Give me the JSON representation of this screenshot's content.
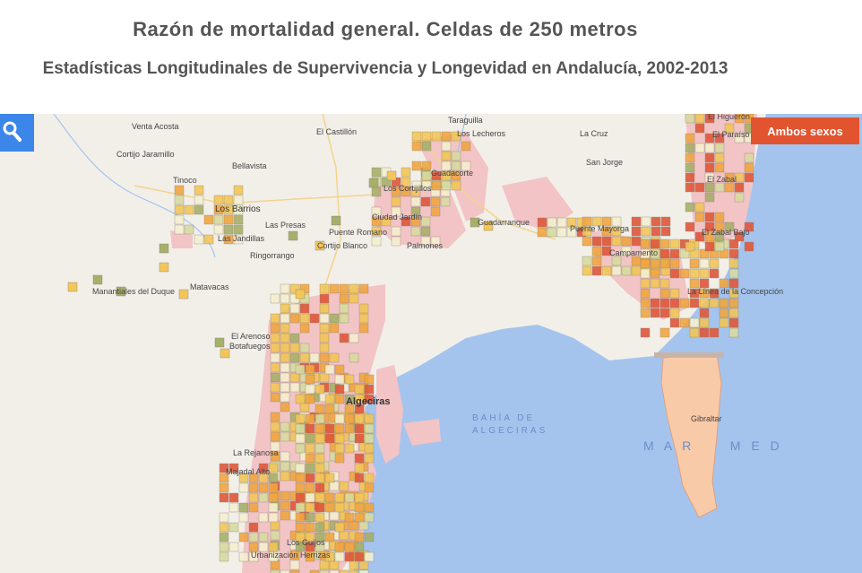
{
  "header": {
    "title": "Razón de mortalidad general. Celdas de 250 metros",
    "subtitle": "Estadísticas Longitudinales de Supervivencia y Longevidad en Andalucía, 2002-2013"
  },
  "controls": {
    "search_icon": "search-icon",
    "sex_filter_label": "Ambos sexos"
  },
  "colors": {
    "sea": "#a4c4ee",
    "land": "#f2efe9",
    "urban": "#f2c4c6",
    "gibraltar": "#f9caa8",
    "cell_low": "#a7b06a",
    "cell_midlow": "#d8dba0",
    "cell_mid": "#f5f0d0",
    "cell_midhigh": "#f2c659",
    "cell_high": "#f0a642",
    "cell_very_high": "#e0573a",
    "button": "#e2542f"
  },
  "labels": {
    "venta_acosta": "Venta Acosta",
    "cortijo_jaramillo": "Cortijo Jaramillo",
    "bellavista": "Bellavista",
    "tinoco": "Tinoco",
    "los_barrios": "Los Barrios",
    "las_presas": "Las Presas",
    "las_jandillas": "Las Jandillas",
    "ringorrango": "Ringorrango",
    "manantiales": "Manantiales del Duque",
    "matavacas": "Matavacas",
    "el_arenoso": "El Arenoso",
    "botafuegos": "Botafuegos",
    "el_castillon": "El Castillón",
    "taraguilla": "Taraguilla",
    "los_lecheros": "Los Lecheros",
    "guadacorte": "Guadacorte",
    "los_cortijillos": "Los Cortijillos",
    "ciudad_jardin": "Ciudad Jardín",
    "puente_romano": "Puente Romano",
    "cortijo_blanco": "Cortijo Blanco",
    "palmones": "Palmones",
    "guadarranque": "Guadarranque",
    "la_cruz": "La Cruz",
    "san_jorge": "San Jorge",
    "puente_mayorga": "Puente Mayorga",
    "campamento": "Campamento",
    "el_higueron": "El Higuerón",
    "el_paraiso": "El Paraíso",
    "el_zabal": "El Zabal",
    "el_zabal_bajo": "El Zabal Bajo",
    "la_linea": "La Línea de la Concepción",
    "algeciras": "Algeciras",
    "bahia_1": "BAHÍA DE",
    "bahia_2": "ALGECIRAS",
    "gibraltar": "Gibraltar",
    "mar_med": "M A R     M E D",
    "la_rejanosa": "La Rejanosa",
    "majadal_alto": "Majadal Alto",
    "los_guijos": "Los Guijos",
    "urbanizacion_herrizas": "Urbanización Herrizas"
  }
}
